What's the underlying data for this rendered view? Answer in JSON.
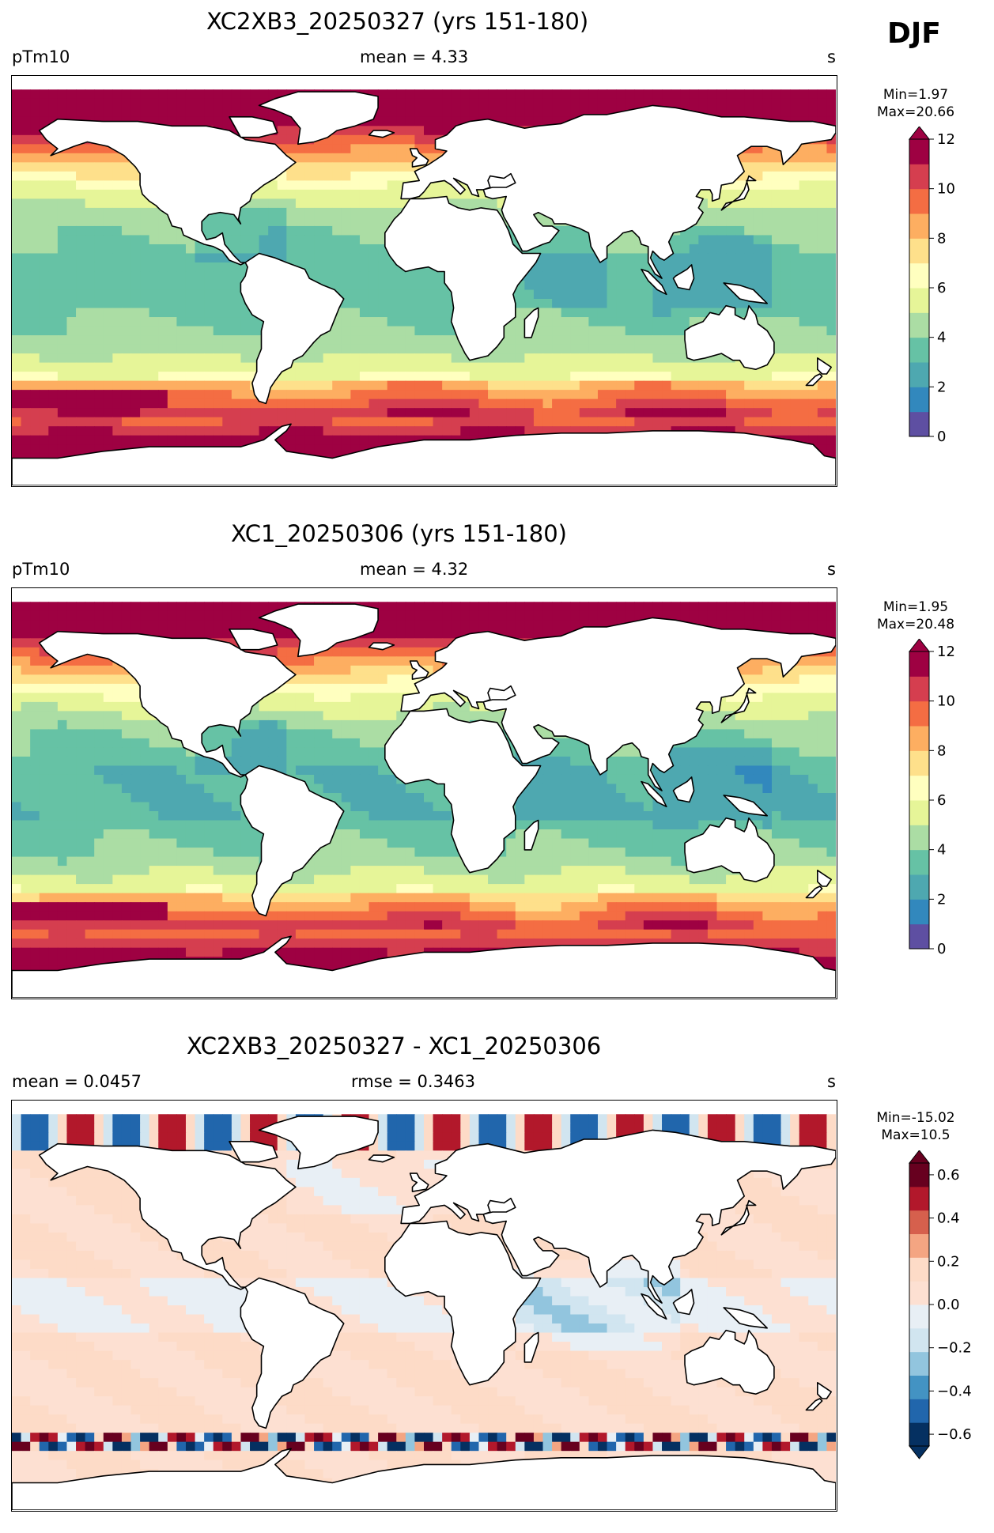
{
  "season": "DJF",
  "colors": {
    "sequential": [
      "#5e4fa2",
      "#3288bd",
      "#4ea8b0",
      "#66c2a5",
      "#abdda4",
      "#e6f598",
      "#ffffbf",
      "#fee08b",
      "#fdae61",
      "#f46d43",
      "#d53e4f",
      "#9e0142"
    ],
    "diverging": [
      "#053061",
      "#2166ac",
      "#4393c3",
      "#92c5de",
      "#d1e5f0",
      "#e8eff5",
      "#fde0d2",
      "#fddbc7",
      "#f4a582",
      "#d6604d",
      "#b2182b",
      "#67001f"
    ],
    "land": "#ffffff",
    "coast": "#000000"
  },
  "panels": [
    {
      "title": "XC2XB3_20250327 (yrs 151-180)",
      "left_label": "pTm10",
      "center_label": "mean = 4.33",
      "right_label": "s",
      "min_text": "Min=1.97",
      "max_text": "Max=20.66",
      "colorbar_ticks": [
        "0",
        "2",
        "4",
        "6",
        "8",
        "10",
        "12"
      ],
      "colormap": "sequential",
      "field": "model"
    },
    {
      "title": "XC1_20250306 (yrs 151-180)",
      "left_label": "pTm10",
      "center_label": "mean = 4.32",
      "right_label": "s",
      "min_text": "Min=1.95",
      "max_text": "Max=20.48",
      "colorbar_ticks": [
        "0",
        "2",
        "4",
        "6",
        "8",
        "10",
        "12"
      ],
      "colormap": "sequential",
      "field": "model"
    },
    {
      "title": "XC2XB3_20250327 - XC1_20250306",
      "left_label": "mean = 0.0457",
      "center_label": "rmse = 0.3463",
      "right_label": "s",
      "min_text": "Min=-15.02",
      "max_text": "Max=10.5",
      "colorbar_ticks": [
        "−0.6",
        "−0.4",
        "−0.2",
        "0.0",
        "0.2",
        "0.4",
        "0.6"
      ],
      "colormap": "diverging",
      "field": "difference"
    }
  ]
}
